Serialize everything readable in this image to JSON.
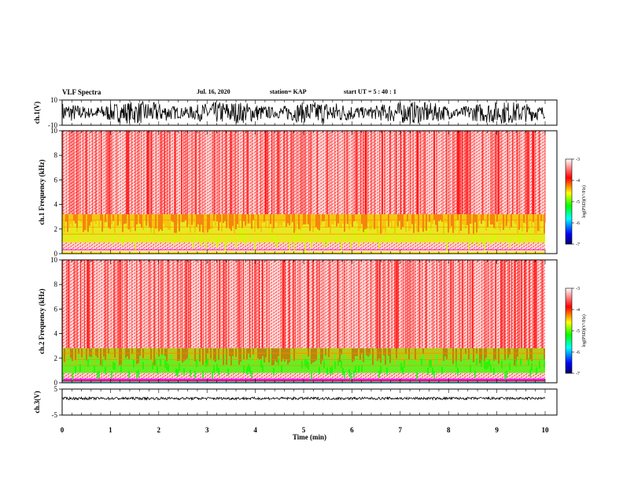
{
  "header": {
    "title": "VLF Spectra",
    "date": "Jul. 16, 2020",
    "station": "station= KAP",
    "start_ut": "start UT = 5 : 40 : 1"
  },
  "chart_data": [
    {
      "type": "line",
      "panel": "waveform-ch1",
      "ylabel": "ch.1(V)",
      "ylim": [
        -10,
        10
      ],
      "yticks": [
        "10",
        "-10"
      ],
      "xlim": [
        0,
        10
      ]
    },
    {
      "type": "heatmap",
      "panel": "spectrogram-ch1",
      "ylabel": "ch.1 Frequency (kHz)",
      "ylim": [
        0,
        10
      ],
      "yticks": [
        "0",
        "2",
        "4",
        "6",
        "8",
        "10"
      ],
      "xlim": [
        0,
        9.85
      ],
      "bands": [
        {
          "from": 0.0,
          "to": 0.3,
          "level": "mixed-lines"
        },
        {
          "from": 0.9,
          "to": 3.2,
          "level": "yellow-green"
        },
        {
          "from": 3.2,
          "to": 10.0,
          "level": "red-white"
        }
      ],
      "colorbar": {
        "label": "log(PSD)(V²/Hz)",
        "range": [
          -7,
          -3
        ],
        "ticks": [
          "-3",
          "-4",
          "-5",
          "-6",
          "-7"
        ]
      }
    },
    {
      "type": "heatmap",
      "panel": "spectrogram-ch2",
      "ylabel": "ch.2 Frequency (kHz)",
      "ylim": [
        0,
        10
      ],
      "yticks": [
        "0",
        "2",
        "4",
        "6",
        "8",
        "10"
      ],
      "xlim": [
        0,
        9.85
      ],
      "bands": [
        {
          "from": 0.0,
          "to": 0.3,
          "level": "mixed-lines"
        },
        {
          "from": 0.8,
          "to": 2.8,
          "level": "green-yellow"
        },
        {
          "from": 2.8,
          "to": 10.0,
          "level": "red-white"
        }
      ],
      "colorbar": {
        "label": "log(PSD)(V²/Hz)",
        "range": [
          -7,
          -3
        ],
        "ticks": [
          "-3",
          "-4",
          "-5",
          "-6",
          "-7"
        ]
      }
    },
    {
      "type": "line",
      "panel": "waveform-ch3",
      "ylabel": "ch.3(V)",
      "ylim": [
        -5,
        5
      ],
      "yticks": [
        "5",
        "-5"
      ],
      "xlim": [
        0,
        10
      ],
      "xlabel": "Time (min)",
      "xticks": [
        "0",
        "1",
        "2",
        "3",
        "4",
        "5",
        "6",
        "7",
        "8",
        "9",
        "10"
      ]
    }
  ],
  "colors": {
    "colormap": [
      "#000066",
      "#0000ff",
      "#00ffff",
      "#00ff00",
      "#ffff00",
      "#ff0000",
      "#ffffff"
    ],
    "trace": "#000000"
  }
}
